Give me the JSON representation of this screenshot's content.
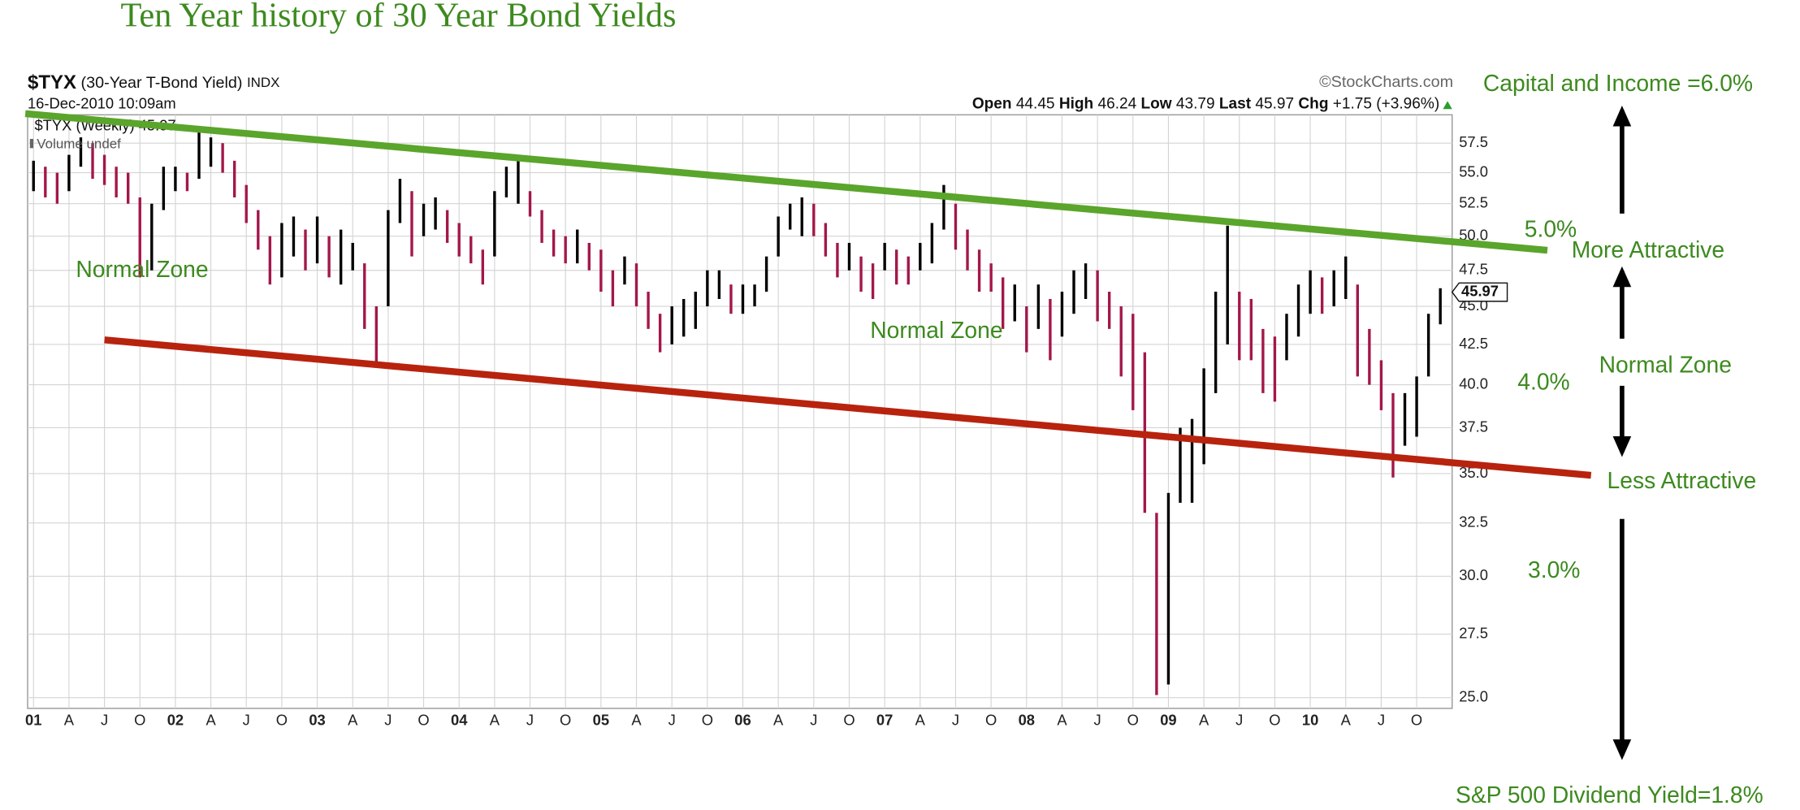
{
  "chart_data": {
    "type": "ohlc",
    "title": "Ten Year history of 30 Year Bond Yields",
    "symbol": "$TYX",
    "symbol_name": "(30-Year T-Bond Yield)",
    "exchange": "INDX",
    "timestamp": "16-Dec-2010 10:09am",
    "source": "©StockCharts.com",
    "quote": {
      "open_label": "Open",
      "open": 44.45,
      "high_label": "High",
      "high": 46.24,
      "low_label": "Low",
      "low": 43.79,
      "last_label": "Last",
      "last": 45.97,
      "change_label": "Chg",
      "change": "+1.75 (+3.96%)"
    },
    "volume_legend": "Volume undef",
    "log_scale": true,
    "grid": true,
    "xlim": [
      -0.5,
      120
    ],
    "ylim": [
      24.6,
      60
    ],
    "xticks": [
      {
        "value": 0,
        "label": "01"
      },
      {
        "value": 3,
        "label": "A"
      },
      {
        "value": 6,
        "label": "J"
      },
      {
        "value": 9,
        "label": "O"
      },
      {
        "value": 12,
        "label": "02"
      },
      {
        "value": 15,
        "label": "A"
      },
      {
        "value": 18,
        "label": "J"
      },
      {
        "value": 21,
        "label": "O"
      },
      {
        "value": 24,
        "label": "03"
      },
      {
        "value": 27,
        "label": "A"
      },
      {
        "value": 30,
        "label": "J"
      },
      {
        "value": 33,
        "label": "O"
      },
      {
        "value": 36,
        "label": "04"
      },
      {
        "value": 39,
        "label": "A"
      },
      {
        "value": 42,
        "label": "J"
      },
      {
        "value": 45,
        "label": "O"
      },
      {
        "value": 48,
        "label": "05"
      },
      {
        "value": 51,
        "label": "A"
      },
      {
        "value": 54,
        "label": "J"
      },
      {
        "value": 57,
        "label": "O"
      },
      {
        "value": 60,
        "label": "06"
      },
      {
        "value": 63,
        "label": "A"
      },
      {
        "value": 66,
        "label": "J"
      },
      {
        "value": 69,
        "label": "O"
      },
      {
        "value": 72,
        "label": "07"
      },
      {
        "value": 75,
        "label": "A"
      },
      {
        "value": 78,
        "label": "J"
      },
      {
        "value": 81,
        "label": "O"
      },
      {
        "value": 84,
        "label": "08"
      },
      {
        "value": 87,
        "label": "A"
      },
      {
        "value": 90,
        "label": "J"
      },
      {
        "value": 93,
        "label": "O"
      },
      {
        "value": 96,
        "label": "09"
      },
      {
        "value": 99,
        "label": "A"
      },
      {
        "value": 102,
        "label": "J"
      },
      {
        "value": 105,
        "label": "O"
      },
      {
        "value": 108,
        "label": "10"
      },
      {
        "value": 111,
        "label": "A"
      },
      {
        "value": 114,
        "label": "J"
      },
      {
        "value": 117,
        "label": "O"
      }
    ],
    "yticks": [
      57.5,
      {
        "value": 55,
        "label": "55.0"
      },
      52.5,
      {
        "value": 50,
        "label": "50.0"
      },
      47.5,
      {
        "value": 45,
        "label": "45.0"
      },
      42.5,
      {
        "value": 40,
        "label": "40.0"
      },
      37.5,
      {
        "value": 35,
        "label": "35.0"
      },
      32.5,
      {
        "value": 30,
        "label": "30.0"
      },
      27.5,
      {
        "value": 25,
        "label": "25.0"
      }
    ],
    "x": [
      0,
      1,
      2,
      3,
      4,
      5,
      6,
      7,
      8,
      9,
      10,
      11,
      12,
      13,
      14,
      15,
      16,
      17,
      18,
      19,
      20,
      21,
      22,
      23,
      24,
      25,
      26,
      27,
      28,
      29,
      30,
      31,
      32,
      33,
      34,
      35,
      36,
      37,
      38,
      39,
      40,
      41,
      42,
      43,
      44,
      45,
      46,
      47,
      48,
      49,
      50,
      51,
      52,
      53,
      54,
      55,
      56,
      57,
      58,
      59,
      60,
      61,
      62,
      63,
      64,
      65,
      66,
      67,
      68,
      69,
      70,
      71,
      72,
      73,
      74,
      75,
      76,
      77,
      78,
      79,
      80,
      81,
      82,
      83,
      84,
      85,
      86,
      87,
      88,
      89,
      90,
      91,
      92,
      93,
      94,
      95,
      96,
      97,
      98,
      99,
      100,
      101,
      102,
      103,
      104,
      105,
      106,
      107,
      108,
      109,
      110,
      111,
      112,
      113,
      114,
      115,
      116,
      117,
      118,
      119
    ],
    "series": [
      {
        "name": "$TYX (Weekly)",
        "up_color": "#000000",
        "down_color": "#a3174a",
        "low": [
          53.5,
          53.0,
          52.5,
          53.5,
          55.5,
          54.5,
          54.0,
          53.0,
          52.5,
          47.0,
          47.5,
          52.0,
          53.5,
          53.5,
          54.5,
          55.5,
          55.0,
          53.0,
          51.0,
          49.0,
          46.5,
          47.0,
          48.5,
          47.5,
          48.0,
          47.0,
          46.5,
          47.5,
          43.5,
          41.2,
          45.0,
          51.0,
          48.5,
          50.0,
          50.5,
          49.5,
          48.5,
          48.0,
          46.5,
          48.5,
          53.0,
          52.5,
          51.5,
          49.5,
          48.5,
          48.0,
          48.0,
          47.5,
          46.0,
          45.0,
          46.5,
          45.0,
          43.5,
          42.0,
          42.5,
          43.0,
          43.5,
          45.0,
          45.5,
          44.5,
          44.5,
          45.0,
          46.0,
          48.5,
          50.5,
          50.0,
          50.0,
          48.5,
          47.0,
          47.5,
          46.0,
          45.5,
          47.5,
          46.5,
          46.5,
          47.5,
          48.0,
          50.5,
          49.0,
          47.5,
          46.0,
          46.0,
          43.5,
          44.0,
          42.0,
          43.5,
          41.5,
          43.0,
          44.5,
          45.5,
          44.0,
          43.5,
          40.5,
          38.5,
          33.0,
          25.1,
          25.5,
          33.5,
          33.5,
          35.5,
          39.5,
          42.5,
          41.5,
          41.5,
          39.5,
          39.0,
          41.5,
          43.0,
          44.5,
          44.5,
          45.0,
          45.5,
          40.5,
          40.0,
          38.5,
          34.8,
          36.5,
          37.0,
          40.5,
          43.8
        ],
        "high": [
          56.0,
          55.5,
          55.0,
          56.5,
          58.0,
          57.5,
          56.5,
          55.5,
          55.0,
          53.0,
          52.5,
          55.5,
          55.5,
          55.0,
          58.5,
          58.0,
          57.5,
          56.0,
          54.0,
          52.0,
          50.0,
          51.0,
          51.5,
          50.5,
          51.5,
          50.0,
          50.5,
          49.5,
          48.0,
          45.0,
          52.0,
          54.5,
          53.5,
          52.5,
          53.0,
          52.0,
          51.0,
          50.0,
          49.0,
          53.5,
          55.5,
          56.0,
          53.5,
          52.0,
          50.5,
          50.0,
          50.5,
          49.5,
          49.0,
          47.5,
          48.5,
          48.0,
          46.0,
          44.5,
          45.0,
          45.5,
          46.0,
          47.5,
          47.5,
          46.5,
          46.5,
          46.5,
          48.5,
          51.5,
          52.5,
          53.0,
          52.5,
          51.0,
          49.5,
          49.5,
          48.5,
          48.0,
          49.5,
          49.0,
          48.5,
          49.5,
          51.0,
          54.0,
          52.5,
          50.5,
          49.0,
          48.0,
          47.0,
          46.5,
          45.0,
          46.5,
          45.5,
          46.0,
          47.5,
          48.0,
          47.5,
          46.0,
          45.0,
          44.5,
          42.0,
          33.0,
          34.0,
          37.5,
          38.0,
          41.0,
          46.0,
          50.8,
          46.0,
          45.5,
          43.5,
          43.0,
          44.5,
          46.5,
          47.5,
          47.0,
          47.5,
          48.5,
          46.5,
          43.5,
          41.5,
          39.5,
          39.5,
          40.5,
          44.5,
          46.24
        ]
      }
    ],
    "annotations": [
      "Normal Zone",
      "Normal Zone",
      "Capital and Income =6.0%",
      "5.0%",
      "More Attractive",
      "Normal Zone",
      "4.0%",
      "Less Attractive",
      "3.0%",
      "S&P 500 Dividend Yield=1.8%"
    ]
  }
}
